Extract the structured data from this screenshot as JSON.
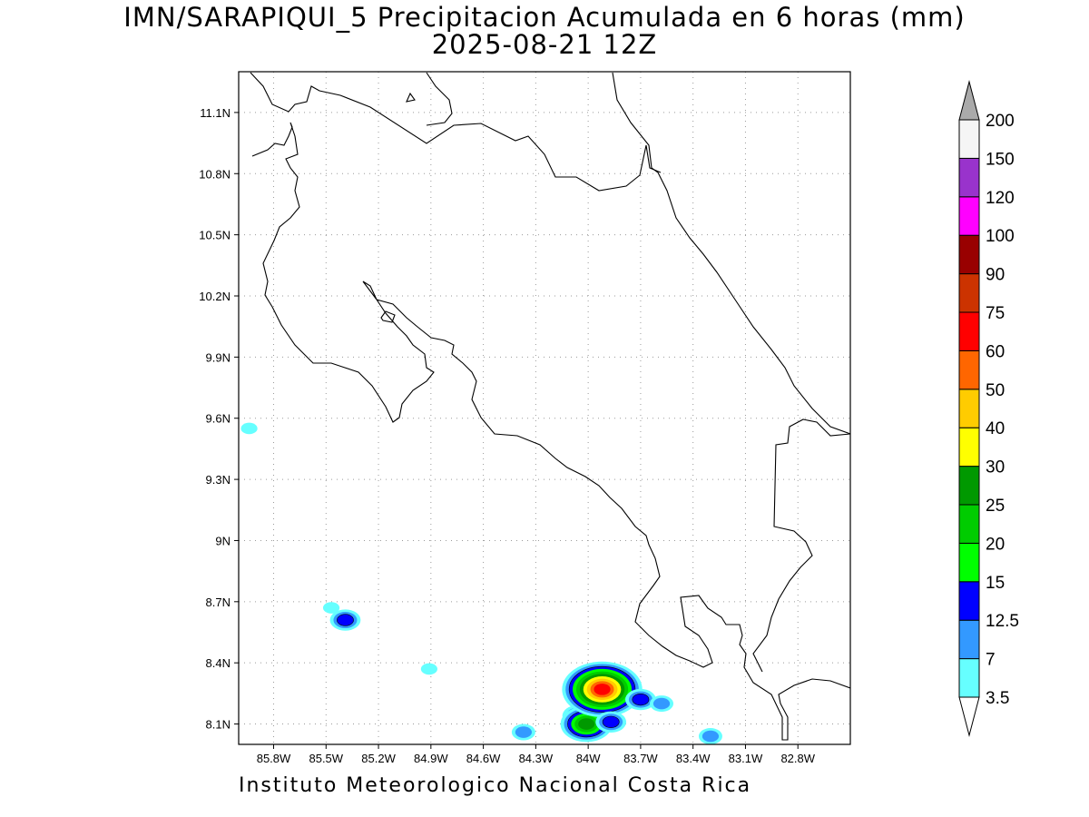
{
  "header": {
    "title": "IMN/SARAPIQUI_5 Precipitacion Acumulada en 6 horas (mm)",
    "subtitle": "2025-08-21 12Z"
  },
  "footer": {
    "credit": "Instituto Meteorologico Nacional Costa Rica"
  },
  "map": {
    "lon_range": [
      -86.0,
      -82.5
    ],
    "lat_range": [
      8.0,
      11.3
    ],
    "grid": true,
    "x_ticks": [
      {
        "value": -85.8,
        "label": "85.8W"
      },
      {
        "value": -85.5,
        "label": "85.5W"
      },
      {
        "value": -85.2,
        "label": "85.2W"
      },
      {
        "value": -84.9,
        "label": "84.9W"
      },
      {
        "value": -84.6,
        "label": "84.6W"
      },
      {
        "value": -84.3,
        "label": "84.3W"
      },
      {
        "value": -84.0,
        "label": "84W"
      },
      {
        "value": -83.7,
        "label": "83.7W"
      },
      {
        "value": -83.4,
        "label": "83.4W"
      },
      {
        "value": -83.1,
        "label": "83.1W"
      },
      {
        "value": -82.8,
        "label": "82.8W"
      }
    ],
    "y_ticks": [
      {
        "value": 11.1,
        "label": "11.1N"
      },
      {
        "value": 10.8,
        "label": "10.8N"
      },
      {
        "value": 10.5,
        "label": "10.5N"
      },
      {
        "value": 10.2,
        "label": "10.2N"
      },
      {
        "value": 9.9,
        "label": "9.9N"
      },
      {
        "value": 9.6,
        "label": "9.6N"
      },
      {
        "value": 9.3,
        "label": "9.3N"
      },
      {
        "value": 9.0,
        "label": "9N"
      },
      {
        "value": 8.7,
        "label": "8.7N"
      },
      {
        "value": 8.4,
        "label": "8.4N"
      },
      {
        "value": 8.1,
        "label": "8.1N"
      }
    ]
  },
  "colorbar": {
    "levels": [
      {
        "label": "3.5",
        "color": "#66ffff"
      },
      {
        "label": "7",
        "color": "#3399ff"
      },
      {
        "label": "12.5",
        "color": "#0000ff"
      },
      {
        "label": "15",
        "color": "#00ff00"
      },
      {
        "label": "20",
        "color": "#00cc00"
      },
      {
        "label": "25",
        "color": "#009900"
      },
      {
        "label": "30",
        "color": "#ffff00"
      },
      {
        "label": "40",
        "color": "#ffcc00"
      },
      {
        "label": "50",
        "color": "#ff6600"
      },
      {
        "label": "60",
        "color": "#ff0000"
      },
      {
        "label": "75",
        "color": "#cc3300"
      },
      {
        "label": "90",
        "color": "#990000"
      },
      {
        "label": "100",
        "color": "#ff00ff"
      },
      {
        "label": "120",
        "color": "#9933cc"
      },
      {
        "label": "150",
        "color": "#f5f5f5"
      },
      {
        "label": "200",
        "color": "#aaaaaa"
      }
    ]
  },
  "precip_cells": [
    {
      "lon": -85.94,
      "lat": 9.55,
      "mm": 3.5
    },
    {
      "lon": -85.47,
      "lat": 8.67,
      "mm": 3.5
    },
    {
      "lon": -85.39,
      "lat": 8.61,
      "mm": 12.5
    },
    {
      "lon": -84.91,
      "lat": 8.37,
      "mm": 3.5
    },
    {
      "lon": -84.37,
      "lat": 8.06,
      "mm": 7
    },
    {
      "lon": -84.06,
      "lat": 8.14,
      "mm": 12.5
    },
    {
      "lon": -84.01,
      "lat": 8.1,
      "mm": 25
    },
    {
      "lon": -83.92,
      "lat": 8.27,
      "mm": 60
    },
    {
      "lon": -83.87,
      "lat": 8.11,
      "mm": 12.5
    },
    {
      "lon": -83.7,
      "lat": 8.22,
      "mm": 12.5
    },
    {
      "lon": -83.58,
      "lat": 8.2,
      "mm": 7
    },
    {
      "lon": -83.3,
      "lat": 8.04,
      "mm": 7
    }
  ]
}
